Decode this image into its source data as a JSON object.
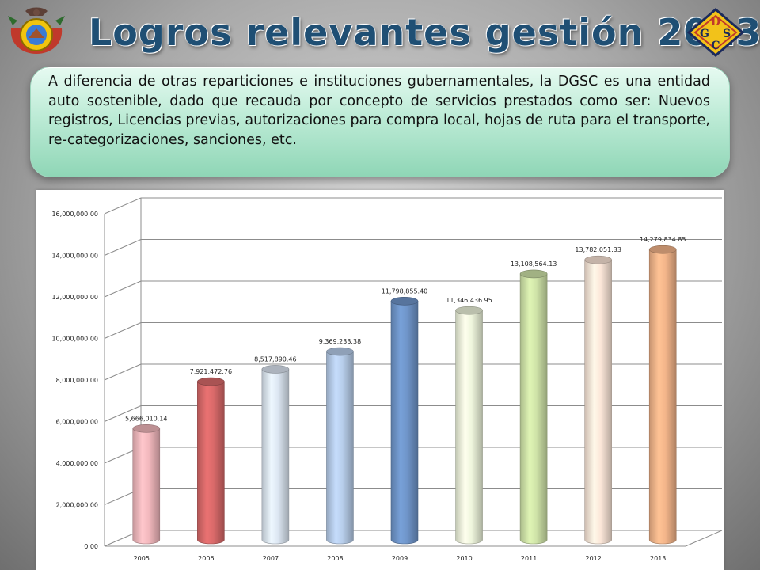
{
  "slide": {
    "title": "Logros relevantes gestión 2013",
    "logo_letters": [
      "D",
      "G",
      "S",
      "C"
    ],
    "intro_text": "A diferencia de otras reparticiones e instituciones gubernamentales, la DGSC es una entidad auto sostenible, dado que recauda por concepto de servicios prestados como ser: Nuevos registros, Licencias previas, autorizaciones para compra local, hojas de ruta para el transporte, re-categorizaciones, sanciones, etc."
  },
  "colors": {
    "title": "#1f4f74",
    "logo_diamond": "#f2c21a"
  },
  "chart_data": {
    "type": "bar",
    "style": "3d-cylinder",
    "categories": [
      "2005",
      "2006",
      "2007",
      "2008",
      "2009",
      "2010",
      "2011",
      "2012",
      "2013"
    ],
    "values": [
      5666010.14,
      7921472.76,
      8517890.46,
      9369233.38,
      11798855.4,
      11346436.95,
      13108564.13,
      13782051.33,
      14279834.85
    ],
    "data_labels": [
      "5,666,010.14",
      "7,921,472.76",
      "8,517,890.46",
      "9,369,233.38",
      "11,798,855.40",
      "11,346,436.95",
      "13,108,564.13",
      "13,782,051.33",
      "14,279,834.85"
    ],
    "bar_colors": [
      "#f2b8bd",
      "#d96a6a",
      "#dce6f2",
      "#b7cdea",
      "#6f95c9",
      "#eef5dc",
      "#cfe3a8",
      "#fbe6d8",
      "#f3b58a"
    ],
    "y_ticks": [
      "0.00",
      "2,000,000.00",
      "4,000,000.00",
      "6,000,000.00",
      "8,000,000.00",
      "10,000,000.00",
      "12,000,000.00",
      "14,000,000.00",
      "16,000,000.00"
    ],
    "ylim": [
      0,
      16000000
    ],
    "grid": true,
    "legend": "none",
    "title": "",
    "xlabel": "",
    "ylabel": ""
  }
}
